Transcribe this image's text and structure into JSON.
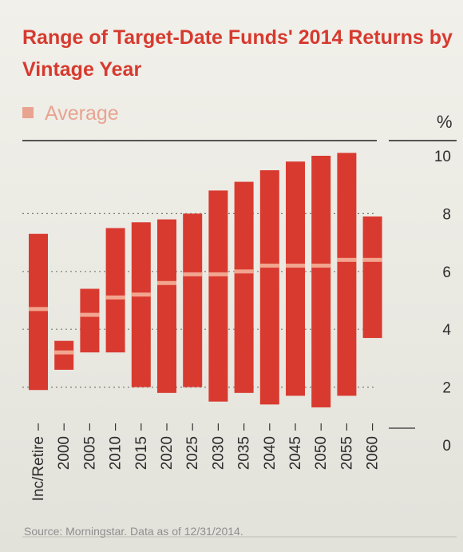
{
  "chart_data": {
    "type": "bar",
    "subtype": "floating-range",
    "title": "Range of Target-Date Funds' 2014 Returns by Vintage Year",
    "unit": "%",
    "legend": [
      "Average"
    ],
    "legend_position": "top-left",
    "ylim": [
      0,
      10
    ],
    "yticks": [
      0,
      2,
      4,
      6,
      8,
      10
    ],
    "grid": true,
    "categories": [
      "Inc/Retire",
      "2000",
      "2005",
      "2010",
      "2015",
      "2020",
      "2025",
      "2030",
      "2035",
      "2040",
      "2045",
      "2050",
      "2055",
      "2060"
    ],
    "low": [
      1.9,
      2.6,
      3.2,
      3.2,
      2.0,
      1.8,
      2.0,
      1.5,
      1.8,
      1.4,
      1.7,
      1.3,
      1.7,
      3.7
    ],
    "high": [
      7.3,
      3.6,
      5.4,
      7.5,
      7.7,
      7.8,
      8.0,
      8.8,
      9.1,
      9.5,
      9.8,
      10.0,
      10.1,
      7.9
    ],
    "average": [
      4.7,
      3.2,
      4.5,
      5.1,
      5.2,
      5.6,
      5.9,
      5.9,
      6.0,
      6.2,
      6.2,
      6.2,
      6.4,
      6.4
    ],
    "colors": {
      "bar": "#d93a30",
      "average": "#f2a58f",
      "title": "#d63a2f"
    },
    "source": "Source: Morningstar. Data as of 12/31/2014."
  }
}
